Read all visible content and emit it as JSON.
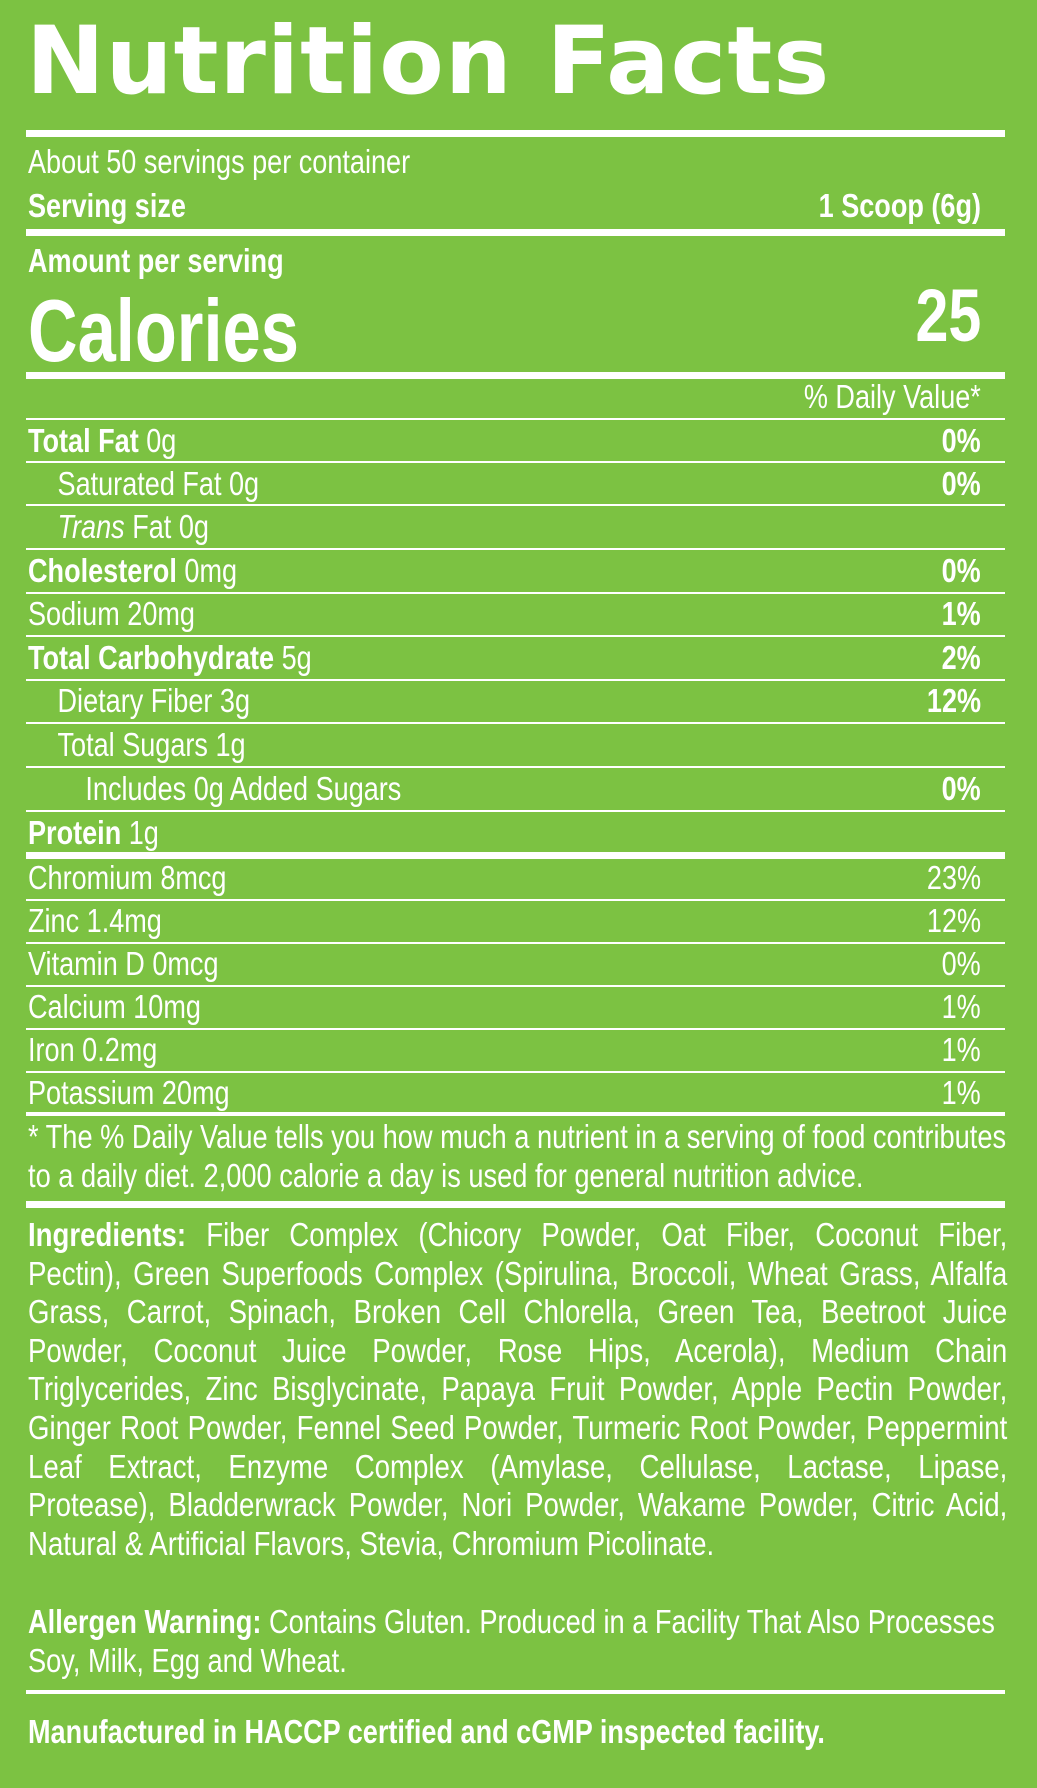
{
  "title": "Nutrition Facts",
  "servings_per_container": "About 50 servings per container",
  "serving_size_label": "Serving size",
  "serving_size_value": "1 Scoop (6g)",
  "amount_per_serving": "Amount per serving",
  "calories_label": "Calories",
  "calories_value": "25",
  "daily_value_header": "% Daily Value*",
  "nutrients": [
    {
      "name": "Total Fat",
      "amount": "0g",
      "dv": "0%"
    },
    {
      "name": "Saturated Fat",
      "amount": "0g",
      "dv": "0%"
    },
    {
      "name": "Trans",
      "suffix": "Fat 0g",
      "dv": ""
    },
    {
      "name": "Cholesterol",
      "amount": "0mg",
      "dv": "0%"
    },
    {
      "name": "Sodium",
      "amount": "20mg",
      "dv": "1%"
    },
    {
      "name": "Total Carbohydrate",
      "amount": "5g",
      "dv": "2%"
    },
    {
      "name": "Dietary Fiber",
      "amount": "3g",
      "dv": "12%"
    },
    {
      "name": "Total Sugars",
      "amount": "1g",
      "dv": ""
    },
    {
      "name": "Includes 0g Added Sugars",
      "amount": "",
      "dv": "0%"
    },
    {
      "name": "Protein",
      "amount": "1g",
      "dv": ""
    }
  ],
  "micronutrients": [
    {
      "label": "Chromium 8mcg",
      "dv": "23%"
    },
    {
      "label": "Zinc 1.4mg",
      "dv": "12%"
    },
    {
      "label": "Vitamin D 0mcg",
      "dv": "0%"
    },
    {
      "label": "Calcium 10mg",
      "dv": "1%"
    },
    {
      "label": "Iron 0.2mg",
      "dv": "1%"
    },
    {
      "label": "Potassium 20mg",
      "dv": "1%"
    }
  ],
  "footnote": "* The % Daily Value tells you how much a nutrient in a serving of food contributes to a daily diet. 2,000 calorie a day is used for general nutrition advice.",
  "ingredients_label": "Ingredients:",
  "ingredients_text": "Fiber Complex (Chicory Powder, Oat Fiber, Coconut Fiber, Pectin), Green Superfoods Complex (Spirulina, Broccoli, Wheat Grass, Alfalfa Grass, Carrot, Spinach, Broken Cell Chlorella, Green Tea, Beetroot Juice Powder, Coconut Juice Powder, Rose Hips, Acerola), Medium Chain Triglycerides, Zinc Bisglycinate, Papaya Fruit Powder, Apple Pectin Powder, Ginger Root Powder, Fennel Seed Powder, Turmeric Root Powder, Peppermint Leaf Extract, Enzyme Complex (Amylase, Cellulase, Lactase, Lipase, Protease), Bladderwrack Powder, Nori Powder, Wakame Powder, Citric Acid, Natural & Artificial Flavors, Stevia, Chromium Picolinate.",
  "allergen_label": "Allergen Warning:",
  "allergen_text": "Contains Gluten. Produced in a Facility That Also Processes Soy, Milk, Egg and Wheat.",
  "manufacturing_note": "Manufactured in HACCP certified and cGMP inspected facility.",
  "colors": {
    "background": "#7cc242",
    "text": "#ffffff"
  }
}
